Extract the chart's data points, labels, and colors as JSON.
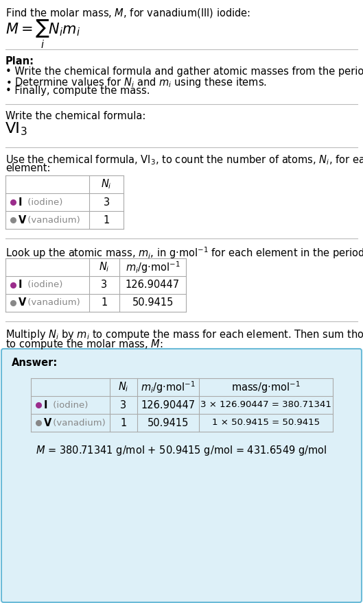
{
  "bg_color": "#ffffff",
  "iodine_dot_color": "#9b2d8c",
  "vanadium_dot_color": "#888888",
  "table_border_color": "#aaaaaa",
  "answer_box_color": "#ddf0f8",
  "answer_box_border": "#6bbbd8",
  "elements": [
    {
      "symbol": "I",
      "name": "iodine",
      "N": 3,
      "m": "126.90447",
      "mass_calc": "3 × 126.90447 = 380.71341"
    },
    {
      "symbol": "V",
      "name": "vanadium",
      "N": 1,
      "m": "50.9415",
      "mass_calc": "1 × 50.9415 = 50.9415"
    }
  ],
  "fs": 10.5,
  "fs_small": 9.5
}
